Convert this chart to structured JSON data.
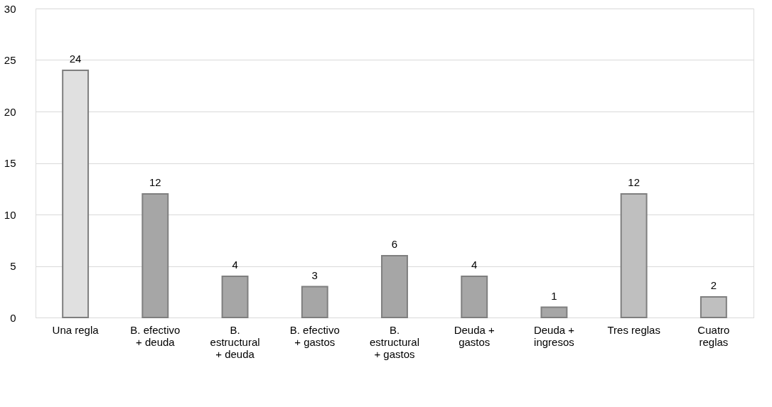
{
  "chart_data": {
    "type": "bar",
    "categories": [
      "Una regla",
      "B. efectivo + deuda",
      "B. estructural + deuda",
      "B. efectivo + gastos",
      "B. estructural + gastos",
      "Deuda + gastos",
      "Deuda + ingresos",
      "Tres reglas",
      "Cuatro reglas"
    ],
    "values": [
      24,
      12,
      4,
      3,
      6,
      4,
      1,
      12,
      2
    ],
    "colors": [
      "#e0e0e0",
      "#a6a6a6",
      "#a6a6a6",
      "#a6a6a6",
      "#a6a6a6",
      "#a6a6a6",
      "#a6a6a6",
      "#bfbfbf",
      "#bfbfbf"
    ],
    "ylim": [
      0,
      30
    ],
    "yticks": [
      0,
      5,
      10,
      15,
      20,
      25,
      30
    ],
    "grid": "y",
    "data_labels": true
  }
}
